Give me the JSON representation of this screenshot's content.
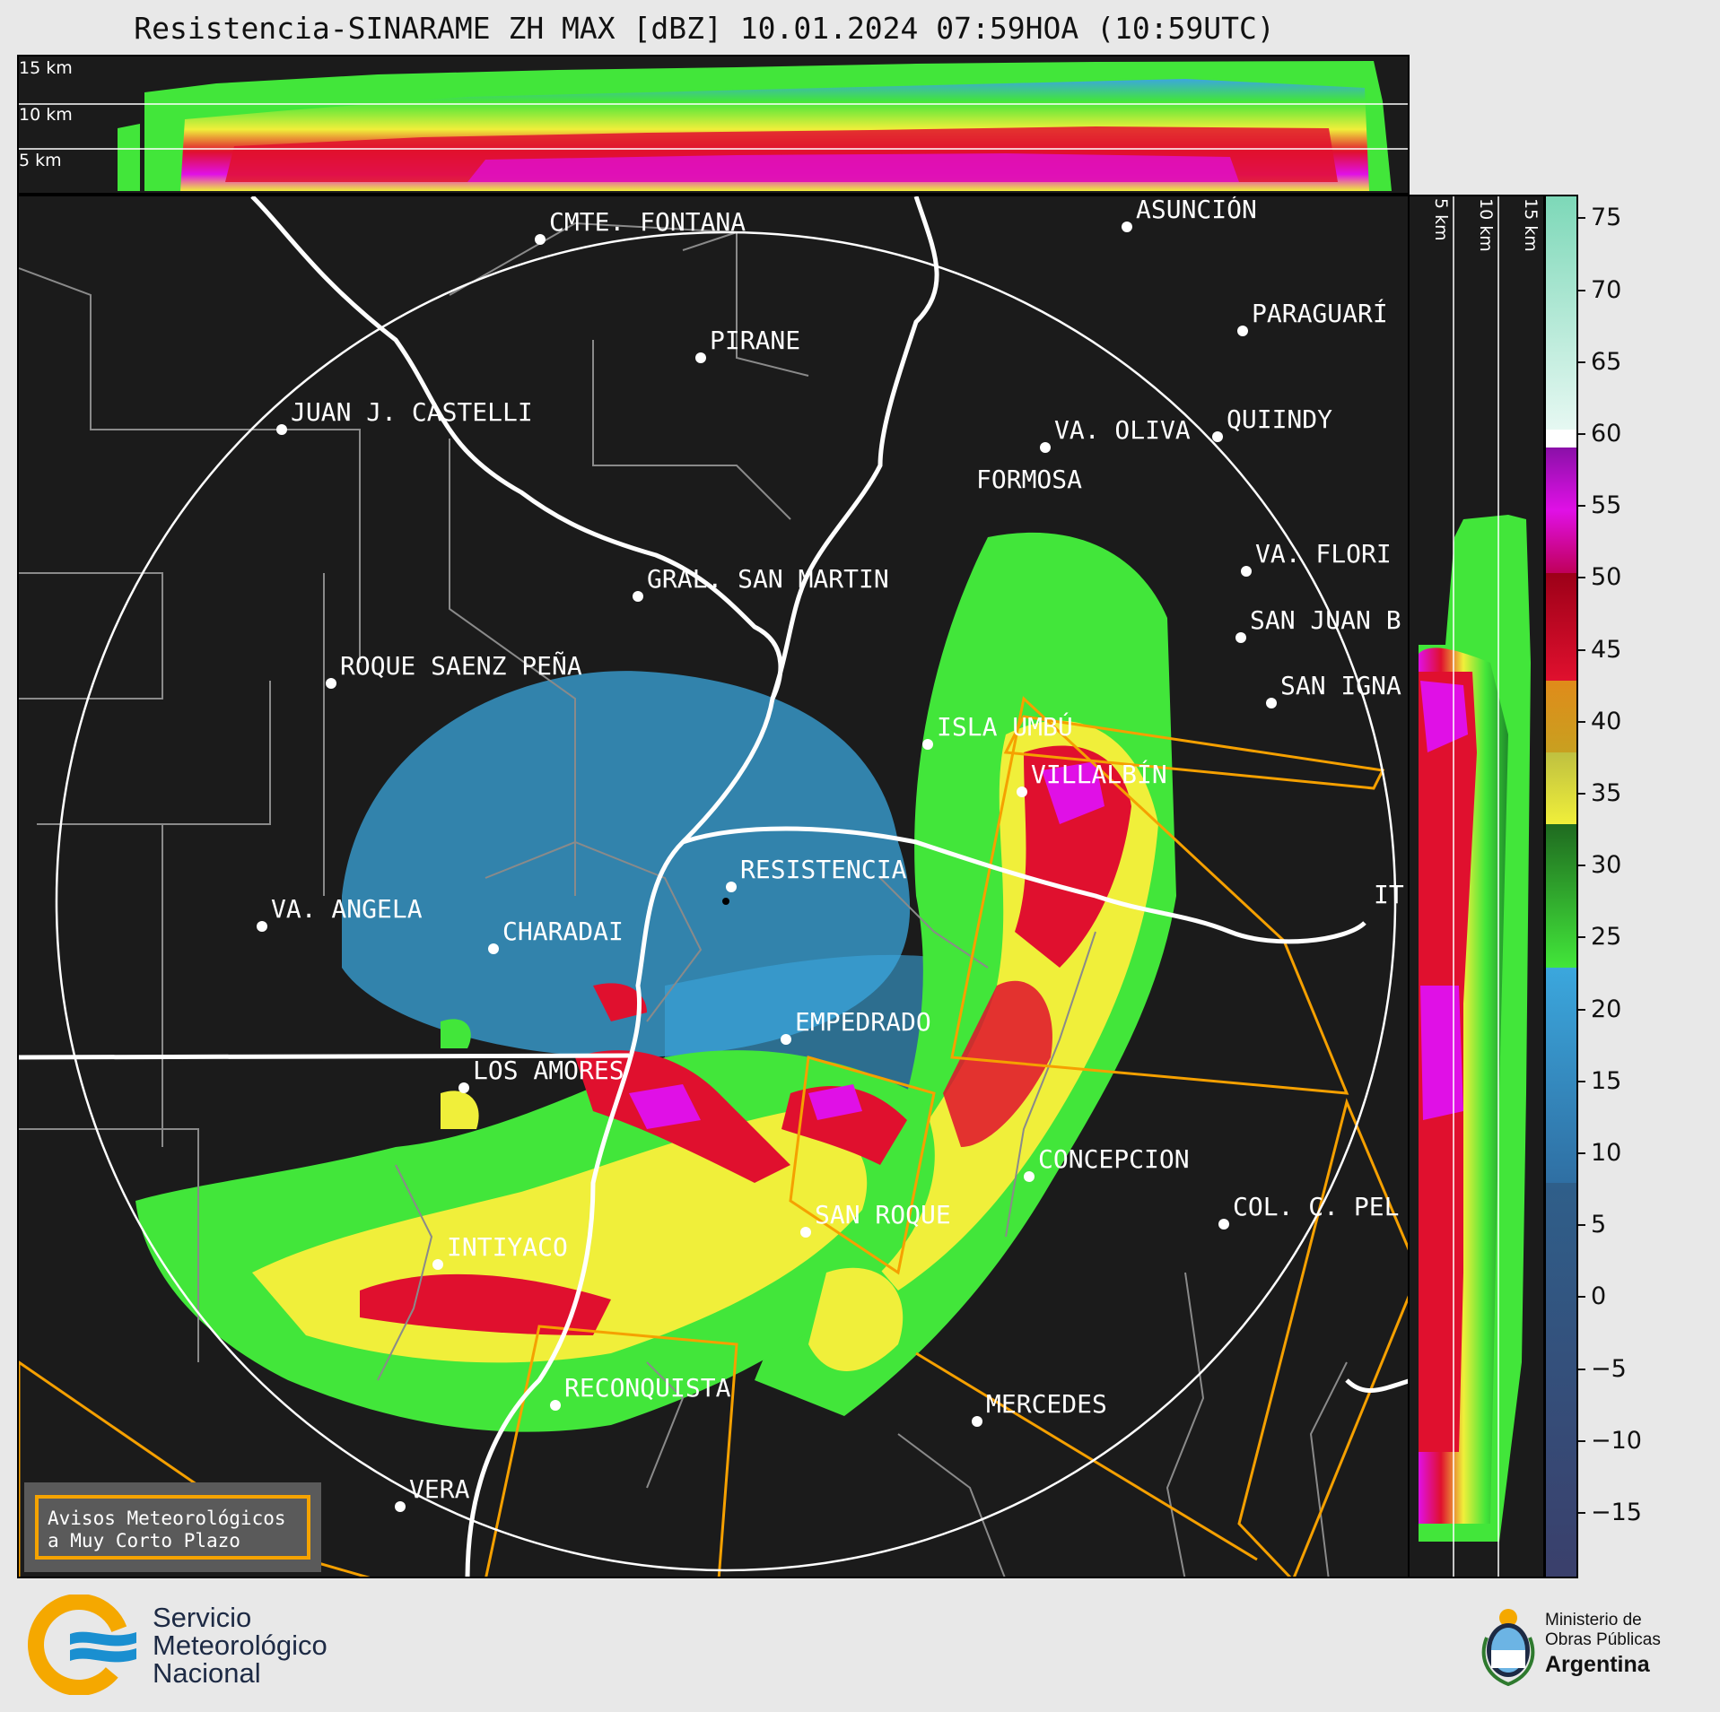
{
  "title": "Resistencia-SINARAME ZH MAX [dBZ] 10.01.2024 07:59HOA (10:59UTC)",
  "top_profile": {
    "height_labels": [
      "15 km",
      "10 km",
      "5 km"
    ]
  },
  "side_profile": {
    "height_labels": [
      "5 km",
      "10 km",
      "15 km"
    ]
  },
  "colorbar": {
    "unit": "dBZ",
    "ticks": [
      75,
      70,
      65,
      60,
      55,
      50,
      45,
      40,
      35,
      30,
      25,
      20,
      15,
      10,
      5,
      0,
      -5,
      -10,
      -15
    ],
    "tick_labels": [
      "75",
      "70",
      "65",
      "60",
      "55",
      "50",
      "45",
      "40",
      "35",
      "30",
      "25",
      "20",
      "15",
      "10",
      "5",
      "0",
      "−5",
      "−10",
      "−15"
    ],
    "range": [
      -20,
      77
    ],
    "colors": {
      "very_low": "#3a3f6b",
      "low": "#2f6fa3",
      "light_blue": "#3ba7dd",
      "green": "#1f8a2a",
      "light_green": "#42e63a",
      "yellow": "#f0ef3a",
      "orange": "#e08b1a",
      "red": "#e0102e",
      "dark_red": "#9c0018",
      "magenta": "#e010e6",
      "purple": "#8a10a8",
      "white": "#ffffff",
      "teal": "#7dd8b8"
    }
  },
  "cities": [
    {
      "name": "CMTE. FONTANA"
    },
    {
      "name": "ASUNCIÓN"
    },
    {
      "name": "PARAGUARÍ"
    },
    {
      "name": "PIRANE"
    },
    {
      "name": "JUAN J. CASTELLI"
    },
    {
      "name": "VA. OLIVA"
    },
    {
      "name": "QUIINDY"
    },
    {
      "name": "FORMOSA"
    },
    {
      "name": "VA. FLORI"
    },
    {
      "name": "GRAL. SAN MARTIN"
    },
    {
      "name": "SAN JUAN B"
    },
    {
      "name": "ROQUE SAENZ PEÑA"
    },
    {
      "name": "SAN IGNA"
    },
    {
      "name": "ISLA UMBÚ"
    },
    {
      "name": "VILLALBÍN"
    },
    {
      "name": "RESISTENCIA"
    },
    {
      "name": "VA. ANGELA"
    },
    {
      "name": "CHARADAI"
    },
    {
      "name": "IT"
    },
    {
      "name": "EMPEDRADO"
    },
    {
      "name": "LOS AMORES"
    },
    {
      "name": "CONCEPCION"
    },
    {
      "name": "SAN ROQUE"
    },
    {
      "name": "COL. C. PEL"
    },
    {
      "name": "INTIYACO"
    },
    {
      "name": "RECONQUISTA"
    },
    {
      "name": "MERCEDES"
    },
    {
      "name": "VERA"
    }
  ],
  "alert_box": {
    "line1": "Avisos Meteorológicos",
    "line2": "a Muy Corto Plazo"
  },
  "footer": {
    "smn": {
      "line1": "Servicio",
      "line2": "Meteorológico",
      "line3": "Nacional"
    },
    "ministry": {
      "line1": "Ministerio de",
      "line2": "Obras Públicas",
      "line3": "Argentina"
    }
  }
}
